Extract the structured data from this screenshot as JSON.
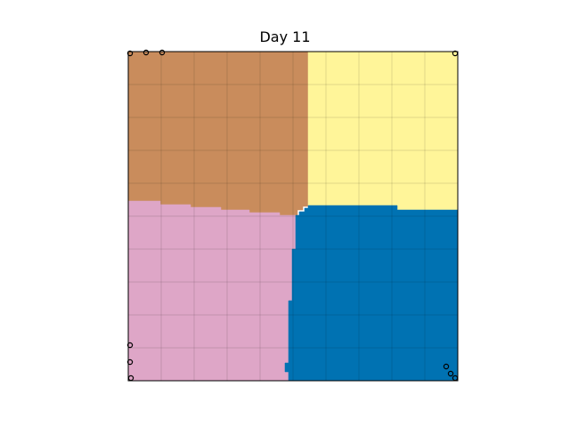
{
  "title": "Day 11",
  "board": {
    "grid_cells": 10,
    "grid_line_color": "#000000",
    "frame_color": "#000000"
  },
  "territories": [
    {
      "name": "brown-territory",
      "color": "#c98c5c"
    },
    {
      "name": "yellow-territory",
      "color": "#fff599"
    },
    {
      "name": "pink-territory",
      "color": "#dea6c7"
    },
    {
      "name": "blue-territory",
      "color": "#0072b2"
    }
  ],
  "agent_markers": [
    {
      "name": "agent-marker-top-left-1"
    },
    {
      "name": "agent-marker-top-left-2"
    },
    {
      "name": "agent-marker-top-left-3"
    },
    {
      "name": "agent-marker-top-right"
    },
    {
      "name": "agent-marker-bottom-left-1"
    },
    {
      "name": "agent-marker-bottom-left-2"
    },
    {
      "name": "agent-marker-bottom-left-3"
    },
    {
      "name": "agent-marker-bottom-right-1"
    },
    {
      "name": "agent-marker-bottom-right-2"
    },
    {
      "name": "agent-marker-bottom-right-3"
    }
  ]
}
